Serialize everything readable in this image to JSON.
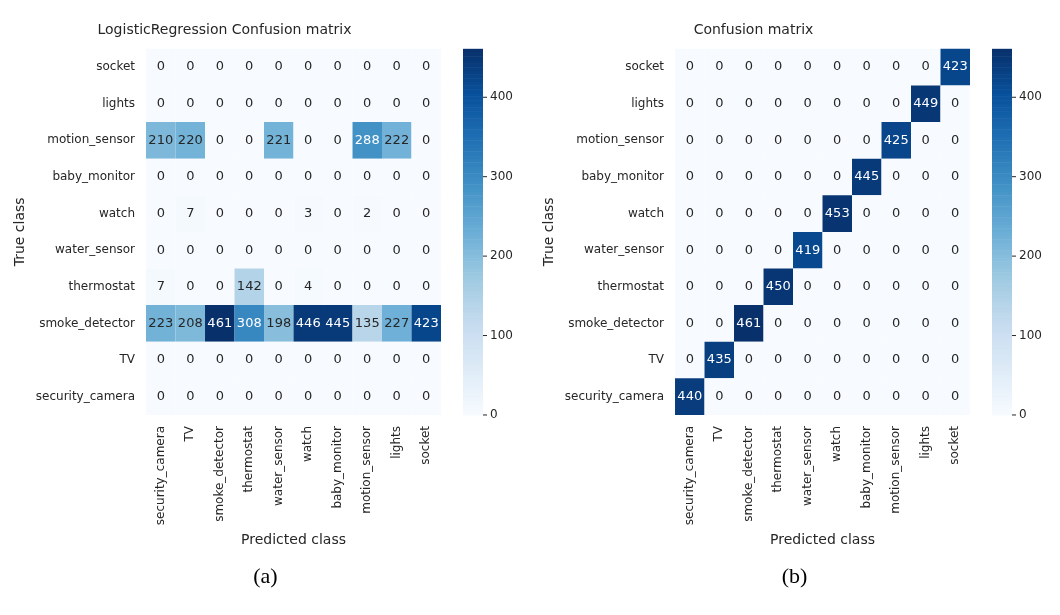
{
  "chart_data": [
    {
      "type": "heatmap",
      "title": "LogisticRegression Confusion matrix",
      "xlabel": "Predicted class",
      "ylabel": "True class",
      "categories": [
        "security_camera",
        "TV",
        "smoke_detector",
        "thermostat",
        "water_sensor",
        "watch",
        "baby_monitor",
        "motion_sensor",
        "lights",
        "socket"
      ],
      "y_categories": [
        "socket",
        "lights",
        "motion_sensor",
        "baby_monitor",
        "watch",
        "water_sensor",
        "thermostat",
        "smoke_detector",
        "TV",
        "security_camera"
      ],
      "cells": [
        [
          0,
          0,
          0,
          0,
          0,
          0,
          0,
          0,
          0,
          0
        ],
        [
          0,
          0,
          0,
          0,
          0,
          0,
          0,
          0,
          0,
          0
        ],
        [
          210,
          220,
          0,
          0,
          221,
          0,
          0,
          288,
          222,
          0
        ],
        [
          0,
          0,
          0,
          0,
          0,
          0,
          0,
          0,
          0,
          0
        ],
        [
          0,
          7,
          0,
          0,
          0,
          3,
          0,
          2,
          0,
          0
        ],
        [
          0,
          0,
          0,
          0,
          0,
          0,
          0,
          0,
          0,
          0
        ],
        [
          7,
          0,
          0,
          142,
          0,
          4,
          0,
          0,
          0,
          0
        ],
        [
          223,
          208,
          461,
          308,
          198,
          446,
          445,
          135,
          227,
          423
        ],
        [
          0,
          0,
          0,
          0,
          0,
          0,
          0,
          0,
          0,
          0
        ],
        [
          0,
          0,
          0,
          0,
          0,
          0,
          0,
          0,
          0,
          0
        ]
      ],
      "clim": [
        0,
        461
      ],
      "cticks": [
        0,
        100,
        200,
        300,
        400
      ],
      "data_labels": true,
      "annotations": [
        "(a)"
      ]
    },
    {
      "type": "heatmap",
      "title": "Confusion matrix",
      "xlabel": "Predicted class",
      "ylabel": "True class",
      "categories": [
        "security_camera",
        "TV",
        "smoke_detector",
        "thermostat",
        "water_sensor",
        "watch",
        "baby_monitor",
        "motion_sensor",
        "lights",
        "socket"
      ],
      "y_categories": [
        "socket",
        "lights",
        "motion_sensor",
        "baby_monitor",
        "watch",
        "water_sensor",
        "thermostat",
        "smoke_detector",
        "TV",
        "security_camera"
      ],
      "cells": [
        [
          0,
          0,
          0,
          0,
          0,
          0,
          0,
          0,
          0,
          423
        ],
        [
          0,
          0,
          0,
          0,
          0,
          0,
          0,
          0,
          449,
          0
        ],
        [
          0,
          0,
          0,
          0,
          0,
          0,
          0,
          425,
          0,
          0
        ],
        [
          0,
          0,
          0,
          0,
          0,
          0,
          445,
          0,
          0,
          0
        ],
        [
          0,
          0,
          0,
          0,
          0,
          453,
          0,
          0,
          0,
          0
        ],
        [
          0,
          0,
          0,
          0,
          419,
          0,
          0,
          0,
          0,
          0
        ],
        [
          0,
          0,
          0,
          450,
          0,
          0,
          0,
          0,
          0,
          0
        ],
        [
          0,
          0,
          461,
          0,
          0,
          0,
          0,
          0,
          0,
          0
        ],
        [
          0,
          435,
          0,
          0,
          0,
          0,
          0,
          0,
          0,
          0
        ],
        [
          440,
          0,
          0,
          0,
          0,
          0,
          0,
          0,
          0,
          0
        ]
      ],
      "clim": [
        0,
        461
      ],
      "cticks": [
        0,
        100,
        200,
        300,
        400
      ],
      "data_labels": true,
      "annotations": [
        "(b)"
      ]
    }
  ]
}
